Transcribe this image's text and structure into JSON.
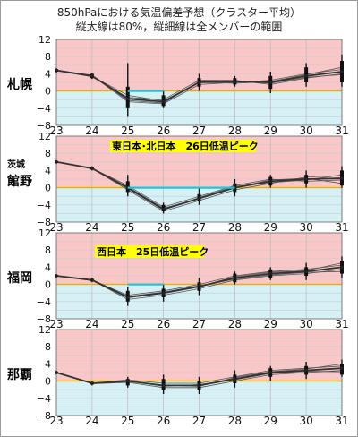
{
  "header": {
    "title": "850hPaにおける気温偏差予想（クラスター平均）",
    "subtitle": "縦太線は80%，縦細線は全メンバーの範囲"
  },
  "colors": {
    "warm_band": "#f9c7c7",
    "cool_band": "#d6f1f6",
    "zero_line": "#e2b400",
    "grid": "#cccccc",
    "mean_line": "#333333",
    "range_bar": "#111111",
    "peak_line": "#22c5d8",
    "annotation_bg": "#ffff00"
  },
  "chart_data": [
    {
      "type": "line",
      "station": "札幌",
      "x": [
        23,
        24,
        25,
        26,
        27,
        28,
        29,
        30,
        31
      ],
      "ylim": [
        -8,
        12
      ],
      "yticks": [
        12,
        8,
        4,
        0,
        -4,
        -8
      ],
      "xticks": [
        23,
        24,
        25,
        26,
        27,
        28,
        29,
        30,
        31
      ],
      "mean": [
        4.8,
        3.5,
        -1.8,
        -2.5,
        2.0,
        2.2,
        2.0,
        3.5,
        4.5
      ],
      "series": [
        {
          "values": [
            4.8,
            3.3,
            -1.5,
            -2.0,
            2.5,
            2.5,
            1.5,
            3.0,
            4.0
          ]
        },
        {
          "values": [
            4.8,
            3.6,
            -2.5,
            -3.0,
            1.5,
            2.0,
            2.5,
            4.0,
            5.0
          ]
        },
        {
          "values": [
            4.8,
            3.4,
            -1.0,
            -2.3,
            2.0,
            1.8,
            2.2,
            3.8,
            5.5
          ]
        },
        {
          "values": [
            4.8,
            3.7,
            -2.2,
            -2.8,
            2.2,
            2.4,
            1.8,
            3.2,
            3.8
          ]
        }
      ],
      "range80": [
        [
          4.5,
          5.1
        ],
        [
          3.0,
          4.0
        ],
        [
          -4.0,
          1.0
        ],
        [
          -3.5,
          -1.0
        ],
        [
          1.0,
          3.0
        ],
        [
          1.5,
          3.0
        ],
        [
          0.5,
          3.5
        ],
        [
          2.0,
          5.5
        ],
        [
          2.0,
          7.0
        ]
      ],
      "range_all": [
        [
          4.3,
          5.3
        ],
        [
          2.8,
          4.2
        ],
        [
          -6.0,
          6.5
        ],
        [
          -4.0,
          0.0
        ],
        [
          0.0,
          4.0
        ],
        [
          1.0,
          3.5
        ],
        [
          -0.5,
          4.5
        ],
        [
          1.0,
          6.5
        ],
        [
          1.0,
          8.5
        ]
      ],
      "peak_span": [
        25,
        26
      ],
      "peak_value": 0.0,
      "annotation": ""
    },
    {
      "type": "line",
      "station": "館野",
      "sub_label": "茨城",
      "x": [
        23,
        24,
        25,
        26,
        27,
        28,
        29,
        30,
        31
      ],
      "ylim": [
        -8,
        12
      ],
      "yticks": [
        12,
        8,
        4,
        0,
        -4,
        -8
      ],
      "xticks": [
        23,
        24,
        25,
        26,
        27,
        28,
        29,
        30,
        31
      ],
      "mean": [
        6.0,
        4.5,
        0.0,
        -5.0,
        -2.5,
        0.0,
        1.5,
        2.0,
        2.2
      ],
      "series": [
        {
          "values": [
            6.0,
            4.5,
            0.5,
            -4.5,
            -2.0,
            0.5,
            2.0,
            1.5,
            1.8
          ]
        },
        {
          "values": [
            6.0,
            4.5,
            -0.5,
            -5.5,
            -3.0,
            -0.5,
            1.0,
            2.5,
            2.8
          ]
        },
        {
          "values": [
            6.0,
            4.4,
            0.2,
            -4.8,
            -2.5,
            0.0,
            1.8,
            2.2,
            1.0
          ]
        },
        {
          "values": [
            6.0,
            4.6,
            -0.2,
            -5.2,
            -2.3,
            0.3,
            1.2,
            1.8,
            3.0
          ]
        }
      ],
      "range80": [
        [
          5.8,
          6.2
        ],
        [
          4.2,
          4.8
        ],
        [
          -1.0,
          1.5
        ],
        [
          -5.5,
          -4.0
        ],
        [
          -3.0,
          -1.5
        ],
        [
          -1.0,
          1.0
        ],
        [
          0.5,
          2.5
        ],
        [
          1.0,
          3.0
        ],
        [
          0.5,
          4.0
        ]
      ],
      "range_all": [
        [
          5.6,
          6.4
        ],
        [
          4.0,
          5.0
        ],
        [
          -2.0,
          3.0
        ],
        [
          -6.0,
          -3.5
        ],
        [
          -4.0,
          0.0
        ],
        [
          -2.0,
          2.0
        ],
        [
          0.0,
          3.0
        ],
        [
          0.0,
          4.0
        ],
        [
          0.0,
          5.0
        ]
      ],
      "peak_span": [
        25,
        28
      ],
      "peak_value": 0.0,
      "annotation": "東日本･北日本　26日低温ピーク"
    },
    {
      "type": "line",
      "station": "福岡",
      "x": [
        23,
        24,
        25,
        26,
        27,
        28,
        29,
        30,
        31
      ],
      "ylim": [
        -8,
        12
      ],
      "yticks": [
        12,
        8,
        4,
        0,
        -4,
        -8
      ],
      "xticks": [
        23,
        24,
        25,
        26,
        27,
        28,
        29,
        30,
        31
      ],
      "mean": [
        2.0,
        1.0,
        -3.0,
        -2.0,
        -0.5,
        1.5,
        2.5,
        3.0,
        4.0
      ],
      "series": [
        {
          "values": [
            2.0,
            1.0,
            -2.5,
            -1.5,
            0.0,
            2.0,
            3.0,
            3.5,
            4.5
          ]
        },
        {
          "values": [
            2.0,
            1.0,
            -3.5,
            -2.5,
            -1.0,
            1.0,
            2.0,
            2.5,
            3.5
          ]
        },
        {
          "values": [
            2.0,
            0.9,
            -3.0,
            -2.0,
            -0.5,
            1.8,
            2.8,
            3.2,
            5.0
          ]
        },
        {
          "values": [
            2.0,
            1.1,
            -2.8,
            -1.8,
            -0.3,
            1.2,
            2.2,
            2.8,
            3.0
          ]
        }
      ],
      "range80": [
        [
          1.8,
          2.2
        ],
        [
          0.7,
          1.3
        ],
        [
          -4.0,
          -1.5
        ],
        [
          -3.0,
          -1.0
        ],
        [
          -1.5,
          0.5
        ],
        [
          0.5,
          2.5
        ],
        [
          1.5,
          3.5
        ],
        [
          2.0,
          4.0
        ],
        [
          2.5,
          5.5
        ]
      ],
      "range_all": [
        [
          1.6,
          2.4
        ],
        [
          0.5,
          1.5
        ],
        [
          -5.0,
          -0.5
        ],
        [
          -4.0,
          0.0
        ],
        [
          -2.5,
          1.5
        ],
        [
          0.0,
          3.0
        ],
        [
          1.0,
          4.0
        ],
        [
          1.0,
          5.0
        ],
        [
          1.5,
          6.5
        ]
      ],
      "peak_span": [
        25,
        26
      ],
      "peak_value": 0.0,
      "annotation": "西日本　25日低温ピーク"
    },
    {
      "type": "line",
      "station": "那覇",
      "x": [
        23,
        24,
        25,
        26,
        27,
        28,
        29,
        30,
        31
      ],
      "ylim": [
        -8,
        12
      ],
      "yticks": [
        12,
        8,
        4,
        0,
        -4,
        -8
      ],
      "xticks": [
        23,
        24,
        25,
        26,
        27,
        28,
        29,
        30,
        31
      ],
      "mean": [
        2.0,
        -0.5,
        0.0,
        -1.0,
        -1.0,
        0.5,
        2.0,
        2.5,
        3.0
      ],
      "series": [
        {
          "values": [
            2.0,
            -0.5,
            0.3,
            -0.5,
            -0.5,
            1.0,
            2.5,
            3.0,
            3.5
          ]
        },
        {
          "values": [
            2.0,
            -0.6,
            -0.3,
            -1.5,
            -1.5,
            0.0,
            1.5,
            2.0,
            2.5
          ]
        },
        {
          "values": [
            2.0,
            -0.4,
            0.0,
            -1.0,
            -1.2,
            0.8,
            2.2,
            2.8,
            4.0
          ]
        },
        {
          "values": [
            2.0,
            -0.5,
            0.1,
            -1.2,
            -0.8,
            0.3,
            1.8,
            2.3,
            2.2
          ]
        }
      ],
      "range80": [
        [
          1.8,
          2.2
        ],
        [
          -0.8,
          -0.2
        ],
        [
          -1.0,
          0.5
        ],
        [
          -2.0,
          0.5
        ],
        [
          -2.0,
          0.0
        ],
        [
          -0.5,
          1.5
        ],
        [
          1.0,
          3.0
        ],
        [
          1.5,
          3.5
        ],
        [
          1.5,
          4.0
        ]
      ],
      "range_all": [
        [
          1.6,
          2.4
        ],
        [
          -1.0,
          0.0
        ],
        [
          -1.5,
          1.0
        ],
        [
          -3.0,
          1.5
        ],
        [
          -3.0,
          1.0
        ],
        [
          -1.5,
          2.5
        ],
        [
          0.0,
          3.5
        ],
        [
          0.5,
          4.5
        ],
        [
          1.0,
          5.0
        ]
      ],
      "peak_span": null,
      "peak_value": null,
      "annotation": ""
    }
  ]
}
